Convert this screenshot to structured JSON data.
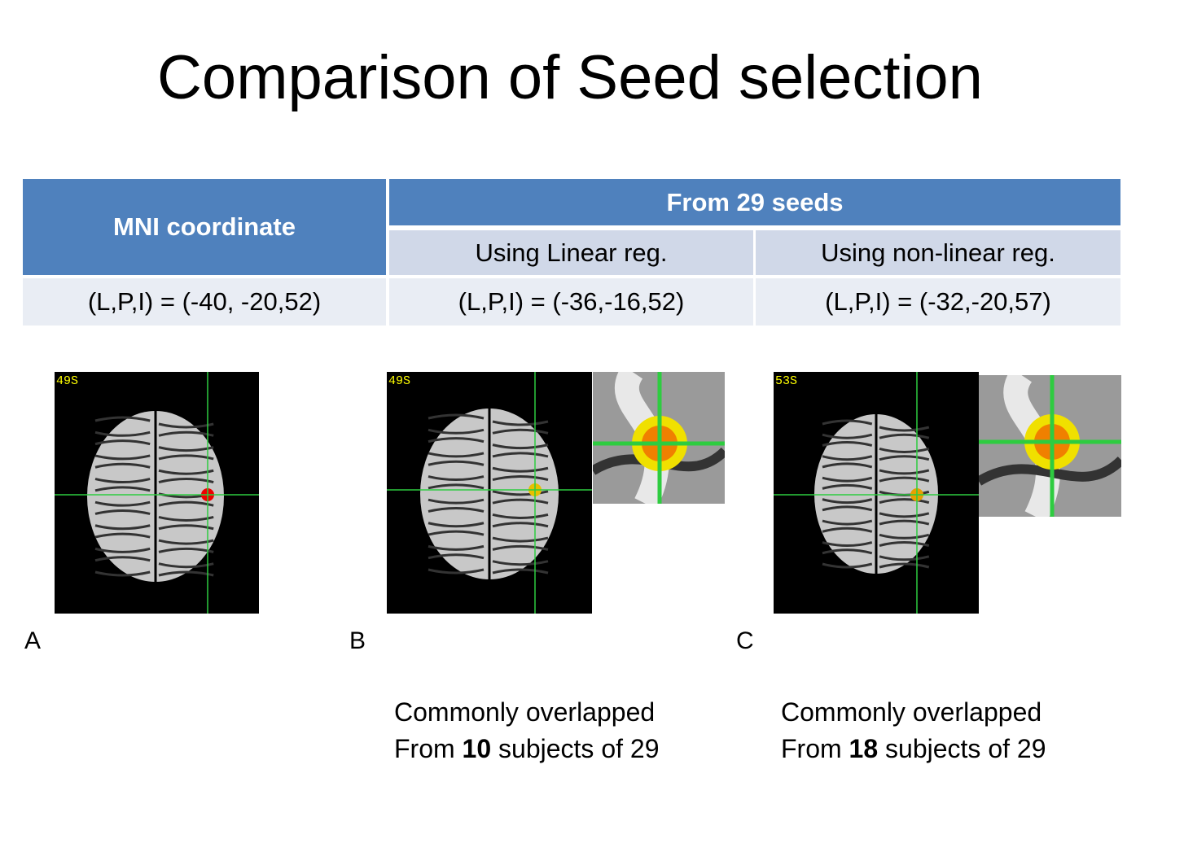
{
  "header": {
    "title": "Comparison of Seed selection"
  },
  "table": {
    "header": {
      "col1": "MNI coordinate",
      "group": "From 29 seeds",
      "sub": [
        "Using Linear reg.",
        "Using non-linear reg."
      ]
    },
    "rows": [
      [
        "(L,P,I) = (-40, -20,52)",
        "(L,P,I) = (-36,-16,52)",
        "(L,P,I) = (-32,-20,57)"
      ]
    ]
  },
  "panels": [
    {
      "slice": "49S",
      "label": "A"
    },
    {
      "slice": "49S",
      "label": "B",
      "caption": {
        "line1": "Commonly overlapped",
        "prefix": "From",
        "count": "10",
        "suffix": "subjects of 29"
      }
    },
    {
      "slice": "53S",
      "label": "C",
      "caption": {
        "line1": "Commonly overlapped",
        "prefix": "From",
        "count": "18",
        "suffix": "subjects of 29"
      }
    }
  ]
}
